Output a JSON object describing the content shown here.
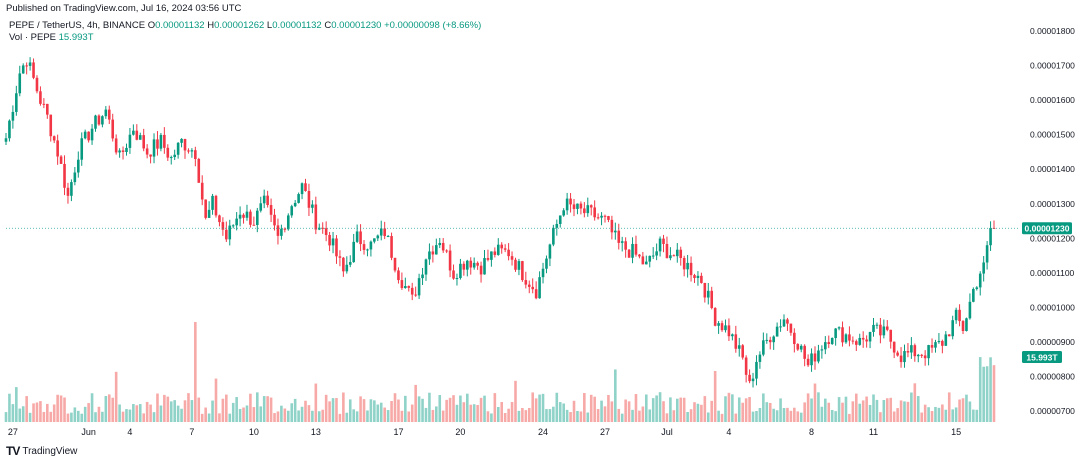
{
  "header": {
    "published": "Published on TradingView.com, Jul 16, 2024 03:56 UTC",
    "symbol": "PEPE / TetherUS, 4h, BINANCE",
    "ohlc": [
      {
        "label": "O",
        "value": "0.00001132"
      },
      {
        "label": "H",
        "value": "0.00001262"
      },
      {
        "label": "L",
        "value": "0.00001132"
      },
      {
        "label": "C",
        "value": "0.00001230"
      }
    ],
    "change": "+0.00000098 (+8.66%)",
    "vol_label": "Vol · PEPE",
    "vol_value": "15.993T"
  },
  "footer": {
    "brand": "TradingView",
    "logo": "TV"
  },
  "colors": {
    "up": "#089981",
    "down": "#f23645",
    "up_vol": "#8fd2c8",
    "down_vol": "#f7a9a7",
    "last_price_line": "#26a69a"
  },
  "chart_data": {
    "type": "candlestick",
    "interval": "4h",
    "price_axis": {
      "ticks": [
        "0.00001800",
        "0.00001700",
        "0.00001600",
        "0.00001500",
        "0.00001400",
        "0.00001300",
        "0.00001200",
        "0.00001100",
        "0.00001000",
        "0.00000900",
        "0.00000800",
        "0.00000700"
      ],
      "range": [
        6.7e-06,
        1.81e-05
      ]
    },
    "x_labels": [
      {
        "label": "27",
        "index": 2
      },
      {
        "label": "Jun",
        "index": 24
      },
      {
        "label": "4",
        "index": 36
      },
      {
        "label": "7",
        "index": 54
      },
      {
        "label": "10",
        "index": 72
      },
      {
        "label": "13",
        "index": 90
      },
      {
        "label": "17",
        "index": 114
      },
      {
        "label": "20",
        "index": 132
      },
      {
        "label": "24",
        "index": 156
      },
      {
        "label": "27",
        "index": 174
      },
      {
        "label": "Jul",
        "index": 192
      },
      {
        "label": "4",
        "index": 210
      },
      {
        "label": "8",
        "index": 234
      },
      {
        "label": "11",
        "index": 252
      },
      {
        "label": "15",
        "index": 276
      }
    ],
    "last_price": "0.00001230",
    "last_volume": "15.993T",
    "anchors": [
      [
        0,
        1.49
      ],
      [
        4,
        1.68
      ],
      [
        6,
        1.72
      ],
      [
        10,
        1.6
      ],
      [
        12,
        1.55
      ],
      [
        15,
        1.45
      ],
      [
        18,
        1.32
      ],
      [
        21,
        1.45
      ],
      [
        25,
        1.52
      ],
      [
        29,
        1.57
      ],
      [
        33,
        1.43
      ],
      [
        37,
        1.52
      ],
      [
        41,
        1.45
      ],
      [
        45,
        1.48
      ],
      [
        48,
        1.43
      ],
      [
        51,
        1.48
      ],
      [
        55,
        1.45
      ],
      [
        58,
        1.25
      ],
      [
        60,
        1.3
      ],
      [
        64,
        1.2
      ],
      [
        68,
        1.28
      ],
      [
        72,
        1.25
      ],
      [
        75,
        1.3
      ],
      [
        79,
        1.2
      ],
      [
        83,
        1.3
      ],
      [
        86,
        1.35
      ],
      [
        90,
        1.25
      ],
      [
        94,
        1.2
      ],
      [
        98,
        1.1
      ],
      [
        102,
        1.2
      ],
      [
        106,
        1.18
      ],
      [
        110,
        1.22
      ],
      [
        114,
        1.1
      ],
      [
        118,
        1.02
      ],
      [
        122,
        1.15
      ],
      [
        126,
        1.2
      ],
      [
        130,
        1.1
      ],
      [
        134,
        1.14
      ],
      [
        138,
        1.12
      ],
      [
        142,
        1.16
      ],
      [
        146,
        1.16
      ],
      [
        150,
        1.1
      ],
      [
        154,
        1.05
      ],
      [
        158,
        1.18
      ],
      [
        162,
        1.3
      ],
      [
        166,
        1.28
      ],
      [
        170,
        1.27
      ],
      [
        174,
        1.25
      ],
      [
        178,
        1.18
      ],
      [
        182,
        1.16
      ],
      [
        186,
        1.12
      ],
      [
        190,
        1.18
      ],
      [
        194,
        1.15
      ],
      [
        198,
        1.12
      ],
      [
        202,
        1.08
      ],
      [
        206,
        0.97
      ],
      [
        210,
        0.93
      ],
      [
        214,
        0.85
      ],
      [
        216,
        0.77
      ],
      [
        218,
        0.85
      ],
      [
        222,
        0.92
      ],
      [
        226,
        0.97
      ],
      [
        230,
        0.9
      ],
      [
        233,
        0.83
      ],
      [
        236,
        0.88
      ],
      [
        240,
        0.93
      ],
      [
        244,
        0.92
      ],
      [
        248,
        0.9
      ],
      [
        252,
        0.93
      ],
      [
        256,
        0.92
      ],
      [
        260,
        0.86
      ],
      [
        264,
        0.87
      ],
      [
        268,
        0.87
      ],
      [
        272,
        0.9
      ],
      [
        276,
        0.97
      ],
      [
        278,
        0.94
      ],
      [
        281,
        1.05
      ],
      [
        284,
        1.13
      ],
      [
        286,
        1.23
      ]
    ],
    "anchors_unit": "0.00001 USDT",
    "volume_range": [
      0,
      20
    ]
  }
}
